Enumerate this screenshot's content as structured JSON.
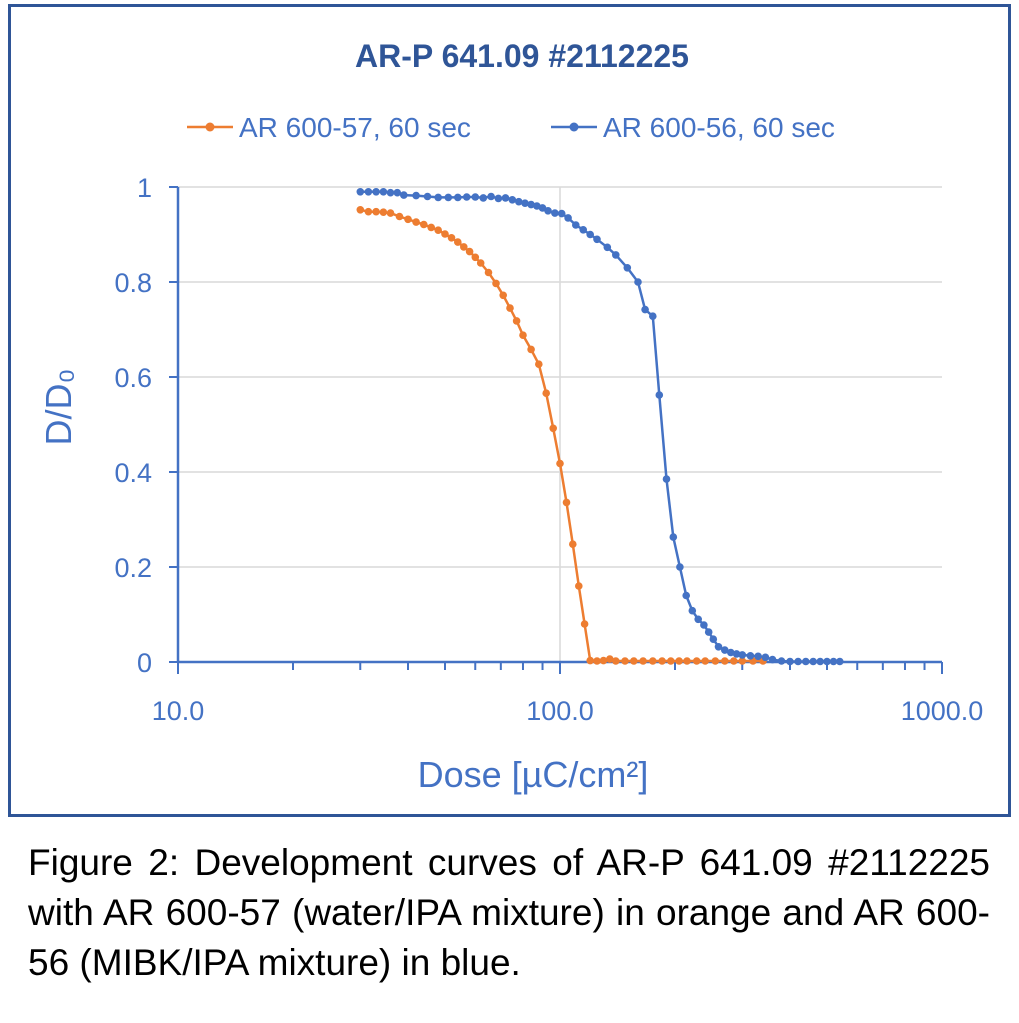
{
  "chart_data": {
    "type": "line",
    "title": "AR-P 641.09 #2112225",
    "xlabel": "Dose [µC/cm²]",
    "ylabel": "D/D₀",
    "xscale": "log",
    "xlim": [
      10,
      1000
    ],
    "ylim": [
      0,
      1
    ],
    "xticks": [
      "10.0",
      "100.0",
      "1000.0"
    ],
    "yticks": [
      "0",
      "0.2",
      "0.4",
      "0.6",
      "0.8",
      "1"
    ],
    "grid": true,
    "legend": "top",
    "series": [
      {
        "name": "AR 600-57, 60 sec",
        "color": "#ed7d31",
        "points": [
          [
            30,
            0.952
          ],
          [
            31.5,
            0.948
          ],
          [
            33,
            0.948
          ],
          [
            34.5,
            0.947
          ],
          [
            36,
            0.945
          ],
          [
            38,
            0.938
          ],
          [
            40,
            0.932
          ],
          [
            42,
            0.926
          ],
          [
            44,
            0.921
          ],
          [
            46,
            0.915
          ],
          [
            48,
            0.909
          ],
          [
            50,
            0.901
          ],
          [
            52,
            0.893
          ],
          [
            54,
            0.884
          ],
          [
            56,
            0.874
          ],
          [
            58,
            0.864
          ],
          [
            60,
            0.852
          ],
          [
            62,
            0.84
          ],
          [
            65,
            0.82
          ],
          [
            68,
            0.797
          ],
          [
            71,
            0.772
          ],
          [
            74,
            0.745
          ],
          [
            77,
            0.718
          ],
          [
            80,
            0.688
          ],
          [
            84,
            0.658
          ],
          [
            88,
            0.627
          ],
          [
            92,
            0.566
          ],
          [
            96,
            0.492
          ],
          [
            100,
            0.418
          ],
          [
            104,
            0.336
          ],
          [
            108,
            0.248
          ],
          [
            112,
            0.16
          ],
          [
            116,
            0.08
          ],
          [
            120,
            0.003
          ],
          [
            125,
            0.002
          ],
          [
            130,
            0.003
          ],
          [
            135,
            0.006
          ],
          [
            140,
            0.002
          ],
          [
            148,
            0.002
          ],
          [
            156,
            0.002
          ],
          [
            165,
            0.002
          ],
          [
            175,
            0.002
          ],
          [
            185,
            0.002
          ],
          [
            195,
            0.002
          ],
          [
            205,
            0.002
          ],
          [
            215,
            0.002
          ],
          [
            228,
            0.002
          ],
          [
            240,
            0.002
          ],
          [
            255,
            0.002
          ],
          [
            270,
            0.002
          ],
          [
            285,
            0.002
          ],
          [
            300,
            0.002
          ],
          [
            320,
            0.002
          ],
          [
            340,
            0.002
          ]
        ]
      },
      {
        "name": "AR 600-56, 60 sec",
        "color": "#4472c4",
        "points": [
          [
            30,
            0.99
          ],
          [
            31.5,
            0.99
          ],
          [
            33,
            0.99
          ],
          [
            34.5,
            0.99
          ],
          [
            36,
            0.988
          ],
          [
            37.5,
            0.988
          ],
          [
            39,
            0.983
          ],
          [
            42,
            0.982
          ],
          [
            45,
            0.98
          ],
          [
            48,
            0.978
          ],
          [
            51,
            0.978
          ],
          [
            54,
            0.978
          ],
          [
            57,
            0.979
          ],
          [
            60,
            0.979
          ],
          [
            63,
            0.977
          ],
          [
            66,
            0.98
          ],
          [
            69,
            0.976
          ],
          [
            72,
            0.977
          ],
          [
            75,
            0.973
          ],
          [
            78,
            0.969
          ],
          [
            81,
            0.966
          ],
          [
            84,
            0.963
          ],
          [
            87,
            0.96
          ],
          [
            90,
            0.956
          ],
          [
            93,
            0.95
          ],
          [
            97,
            0.945
          ],
          [
            101,
            0.944
          ],
          [
            105,
            0.935
          ],
          [
            110,
            0.92
          ],
          [
            115,
            0.91
          ],
          [
            120,
            0.9
          ],
          [
            125,
            0.89
          ],
          [
            133,
            0.873
          ],
          [
            140,
            0.857
          ],
          [
            150,
            0.83
          ],
          [
            160,
            0.8
          ],
          [
            167,
            0.742
          ],
          [
            175,
            0.728
          ],
          [
            182,
            0.562
          ],
          [
            190,
            0.385
          ],
          [
            198,
            0.263
          ],
          [
            206,
            0.2
          ],
          [
            214,
            0.14
          ],
          [
            222,
            0.108
          ],
          [
            230,
            0.09
          ],
          [
            238,
            0.078
          ],
          [
            245,
            0.063
          ],
          [
            252,
            0.048
          ],
          [
            260,
            0.032
          ],
          [
            270,
            0.025
          ],
          [
            280,
            0.02
          ],
          [
            290,
            0.017
          ],
          [
            300,
            0.015
          ],
          [
            315,
            0.013
          ],
          [
            330,
            0.012
          ],
          [
            345,
            0.01
          ],
          [
            360,
            0.005
          ],
          [
            380,
            0.002
          ],
          [
            400,
            0.001
          ],
          [
            420,
            0.001
          ],
          [
            440,
            0.001
          ],
          [
            460,
            0.001
          ],
          [
            480,
            0.001
          ],
          [
            500,
            0.001
          ],
          [
            520,
            0.001
          ],
          [
            540,
            0.001
          ]
        ]
      }
    ]
  },
  "caption": "Figure 2: Development curves of AR-P 641.09 #2112225 with AR 600-57 (water/IPA mixture) in orange and AR 600-56 (MIBK/IPA mixture) in blue."
}
